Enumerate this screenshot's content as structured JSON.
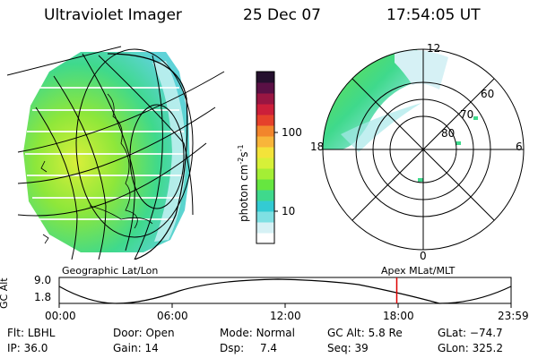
{
  "header": {
    "instrument": "Ultraviolet Imager",
    "date": "25 Dec 07",
    "time": "17:54:05 UT"
  },
  "colorbar": {
    "unit_label": "photon cm",
    "unit_exp1": "-2",
    "unit_mid": "s",
    "unit_exp2": "-1",
    "ticks": [
      "100",
      "10"
    ],
    "colors": [
      "#ffffff",
      "#d6f1f5",
      "#7fe0e3",
      "#33cbd3",
      "#3fd98c",
      "#66e640",
      "#a4ee35",
      "#d7f038",
      "#f3e33a",
      "#f8b53a",
      "#f2852c",
      "#e5412b",
      "#cc1f3a",
      "#991642",
      "#5a1045",
      "#25102e"
    ]
  },
  "geo_panel": {
    "label": "Geographic Lat/Lon"
  },
  "polar_panel": {
    "label": "Apex MLat/MLT",
    "mlt_labels": [
      "12",
      "18",
      "6",
      "0"
    ],
    "lat_labels": [
      "60",
      "70",
      "80"
    ]
  },
  "timeline": {
    "axis_label": "GC Alt",
    "y_ticks": [
      "9.0",
      "1.8"
    ],
    "x_ticks": [
      "00:00",
      "06:00",
      "12:00",
      "18:00",
      "23:59"
    ],
    "current_time_fraction": 0.747
  },
  "status": {
    "row1": [
      {
        "key": "Flt:",
        "value": "LBHL"
      },
      {
        "key": "Door:",
        "value": "Open"
      },
      {
        "key": "Mode:",
        "value": "Normal"
      },
      {
        "key": "GC Alt:",
        "value": "5.8 Re"
      },
      {
        "key": "GLat:",
        "value": "−74.7"
      }
    ],
    "row2": [
      {
        "key": "IP:",
        "value": "36.0"
      },
      {
        "key": "Gain:",
        "value": "14"
      },
      {
        "key": "Dsp:",
        "value": "7.4"
      },
      {
        "key": "Seq:",
        "value": "39"
      },
      {
        "key": "GLon:",
        "value": "325.2"
      }
    ]
  }
}
